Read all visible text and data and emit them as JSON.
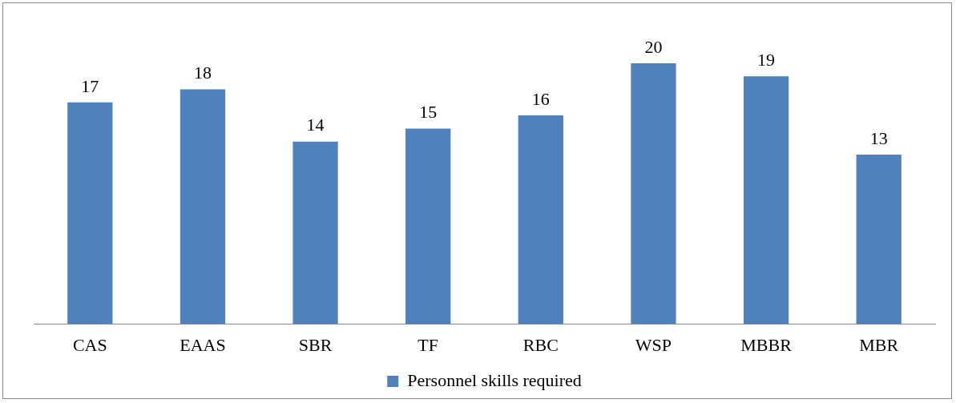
{
  "chart_data": {
    "type": "bar",
    "categories": [
      "CAS",
      "EAAS",
      "SBR",
      "TF",
      "RBC",
      "WSP",
      "MBBR",
      "MBR"
    ],
    "series": [
      {
        "name": "Personnel skills required",
        "color": "#4f81bd",
        "values": [
          17,
          18,
          14,
          15,
          16,
          20,
          19,
          13
        ]
      }
    ],
    "data_labels": true,
    "legend": "bottom",
    "grid": false,
    "tick_labels": "x"
  }
}
